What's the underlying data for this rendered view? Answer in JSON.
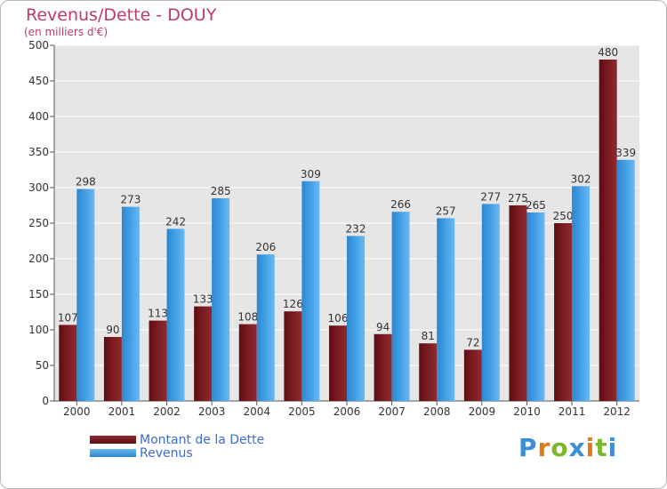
{
  "chart_data": {
    "type": "bar",
    "title": "Revenus/Dette - DOUY",
    "subtitle": "(en milliers d'€)",
    "categories": [
      "2000",
      "2001",
      "2002",
      "2003",
      "2004",
      "2005",
      "2006",
      "2007",
      "2008",
      "2009",
      "2010",
      "2011",
      "2012"
    ],
    "series": [
      {
        "name": "Montant de la Dette",
        "color": "#7a1a1f",
        "values": [
          107,
          90,
          113,
          133,
          108,
          126,
          106,
          94,
          81,
          72,
          275,
          250,
          480
        ]
      },
      {
        "name": "Revenus",
        "color": "#3f9ee6",
        "values": [
          298,
          273,
          242,
          285,
          206,
          309,
          232,
          266,
          257,
          277,
          265,
          302,
          339
        ]
      }
    ],
    "ylim": [
      0,
      500
    ],
    "yticks": [
      0,
      50,
      100,
      150,
      200,
      250,
      300,
      350,
      400,
      450,
      500
    ],
    "grid": true,
    "legend_position": "bottom-left",
    "xlabel": "",
    "ylabel": ""
  },
  "branding": {
    "logo_text": "Proxiti",
    "letter_colors": [
      "#3b8fd8",
      "#e07a1e",
      "#7cb82f",
      "#3b8fd8",
      "#e07a1e",
      "#7cb82f",
      "#3b8fd8"
    ]
  }
}
